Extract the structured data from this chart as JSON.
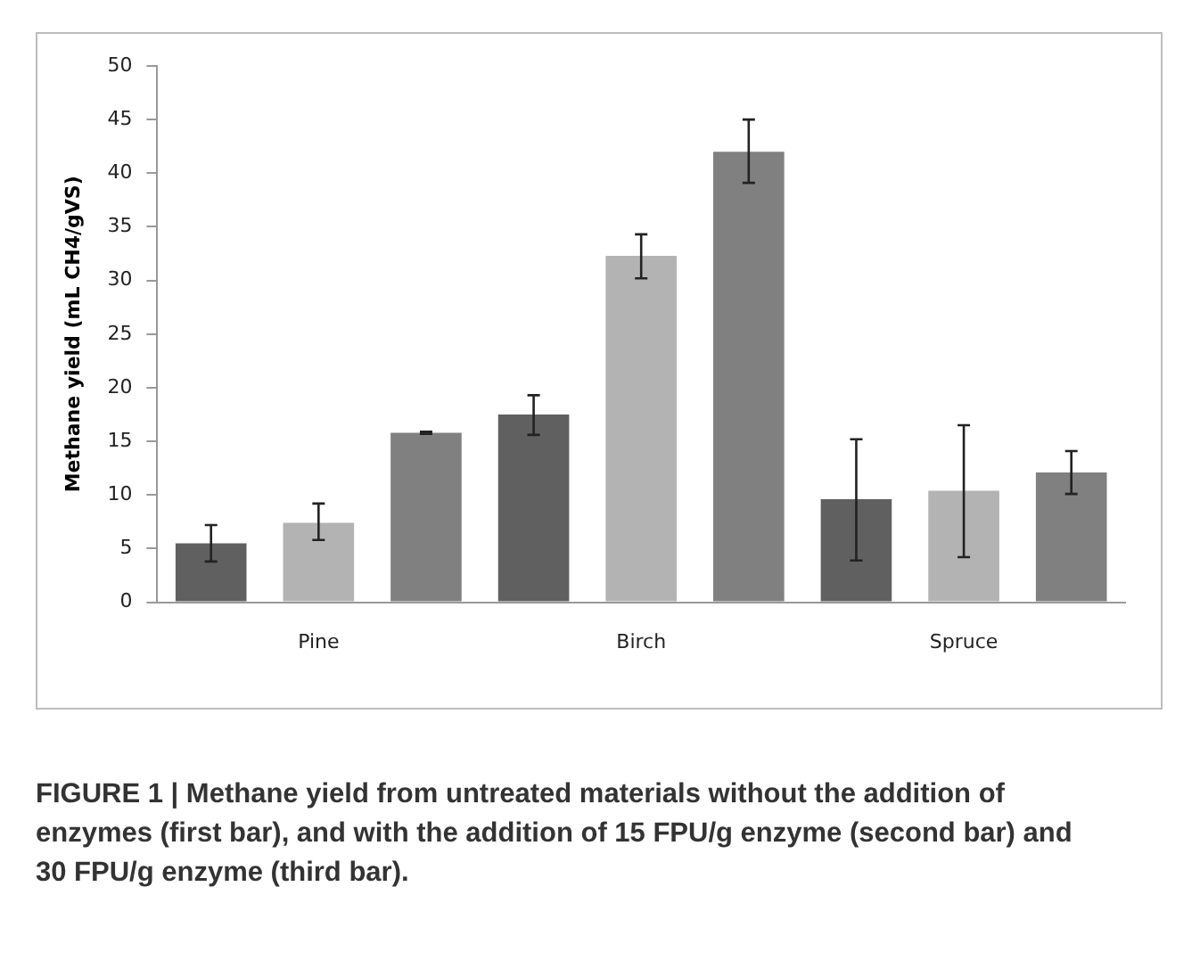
{
  "chart_data": {
    "type": "bar",
    "ylabel": "Methane yield (mL CH4/gVS)",
    "categories": [
      "Pine",
      "Birch",
      "Spruce"
    ],
    "series": [
      {
        "color": "#606060",
        "values": [
          5.5,
          17.5,
          9.6
        ],
        "errors": [
          [
            3.8,
            7.2
          ],
          [
            15.6,
            19.3
          ],
          [
            3.9,
            15.2
          ]
        ]
      },
      {
        "color": "#b3b3b3",
        "values": [
          7.4,
          32.3,
          10.4
        ],
        "errors": [
          [
            5.8,
            9.2
          ],
          [
            30.2,
            34.3
          ],
          [
            4.2,
            16.5
          ]
        ]
      },
      {
        "color": "#808080",
        "values": [
          15.8,
          42,
          12.1
        ],
        "errors": [
          [
            15.7,
            15.9
          ],
          [
            39.1,
            45
          ],
          [
            10.1,
            14.1
          ]
        ]
      }
    ],
    "ylim": [
      0,
      50
    ],
    "yticks": [
      0,
      5,
      10,
      15,
      20,
      25,
      30,
      35,
      40,
      45,
      50
    ],
    "grid": false,
    "legend": false,
    "annotations": [
      "FIGURE 1 | Methane yield from untreated materials without the addition of enzymes (first bar), and with the addition of 15 FPU/g enzyme (second bar) and 30 FPU/g enzyme (third bar)."
    ]
  }
}
